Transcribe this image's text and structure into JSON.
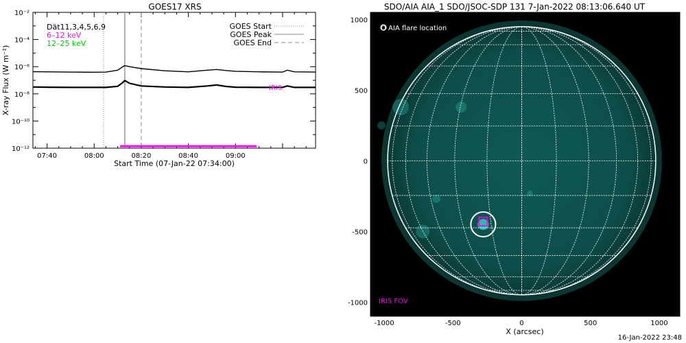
{
  "chart_data": [
    {
      "type": "line",
      "title": "GOES17 XRS",
      "xlabel": "Start Time (07-Jan-22 07:34:00)",
      "ylabel": "X-ray Flux (W m⁻²)",
      "y_scale": "log",
      "ylim": [
        1e-12,
        0.01
      ],
      "xlim": [
        "07:34",
        "09:34"
      ],
      "x_ticks": [
        "07:40",
        "08:00",
        "08:20",
        "08:40",
        "09:00"
      ],
      "y_ticks": [
        "10⁻¹²",
        "10⁻¹⁰",
        "10⁻⁸",
        "10⁻⁶",
        "10⁻⁴",
        "10⁻²"
      ],
      "annotation": "Dät11,3,4,5,6,9",
      "legend_position": "top-right",
      "legend": [
        {
          "label": "GOES Start",
          "style": "dotted"
        },
        {
          "label": "GOES Peak",
          "style": "solid"
        },
        {
          "label": "GOES End",
          "style": "dashed"
        }
      ],
      "channel_labels": [
        {
          "label": "6–12 keV",
          "color": "#ff00ff"
        },
        {
          "label": "12–25 keV",
          "color": "#00cc00"
        }
      ],
      "series": [
        {
          "color": "#000000",
          "x": [
            "07:34",
            "07:40",
            "07:50",
            "08:00",
            "08:05",
            "08:10",
            "08:12",
            "08:13",
            "08:15",
            "08:20",
            "08:30",
            "08:40",
            "08:48",
            "08:52",
            "08:56",
            "09:00",
            "09:10",
            "09:20",
            "09:22",
            "09:25",
            "09:34"
          ],
          "y": [
            4.3e-07,
            4.2e-07,
            4e-07,
            3.9e-07,
            4e-07,
            5.5e-07,
            9.5e-07,
            1.2e-06,
            1e-06,
            7.2e-07,
            5e-07,
            4.2e-07,
            5.5e-07,
            6.2e-07,
            5.2e-07,
            4.6e-07,
            4.2e-07,
            4e-07,
            5.5e-07,
            4.2e-07,
            4e-07
          ]
        },
        {
          "color": "#000000",
          "x": [
            "07:34",
            "07:40",
            "07:50",
            "08:00",
            "08:05",
            "08:10",
            "08:12",
            "08:13",
            "08:15",
            "08:20",
            "08:30",
            "08:40",
            "08:48",
            "08:52",
            "08:56",
            "09:00",
            "09:10",
            "09:20",
            "09:22",
            "09:25",
            "09:34"
          ],
          "y": [
            3.2e-08,
            3.1e-08,
            3e-08,
            3e-08,
            3e-08,
            3.6e-08,
            6.5e-08,
            9.5e-08,
            6e-08,
            3.8e-08,
            3.2e-08,
            3e-08,
            3.8e-08,
            4.5e-08,
            3.5e-08,
            3.1e-08,
            3e-08,
            3e-08,
            3.8e-08,
            3e-08,
            3e-08
          ]
        }
      ],
      "event_lines": {
        "start": "08:04",
        "peak": "08:13",
        "end": "08:20"
      },
      "iris_label": "IRIS",
      "iris_window": {
        "start": "08:11",
        "end": "09:09",
        "y": 1.4e-12,
        "color": "#ff00ff"
      }
    },
    {
      "type": "image",
      "title": "SDO/AIA AIA_1 SDO/JSOC-SDP 131  7-Jan-2022 08:13:06.640 UT",
      "xlabel": "X (arcsec)",
      "xlim": [
        -1100,
        1150
      ],
      "ylim": [
        -1100,
        1050
      ],
      "x_ticks": [
        -1000,
        -500,
        0,
        500,
        1000
      ],
      "y_ticks": [
        -1000,
        -500,
        0,
        500,
        1000
      ],
      "legend_label": "O AIA flare location",
      "iris_fov_label": "IRIS FOV",
      "colors": {
        "disk": "#0f5a55",
        "disk_edge": "#0a3a36",
        "accent": "#2fd6c6",
        "grid": "#ffffff",
        "iris": "#ff00ff"
      },
      "solar_radius_arcsec": 975,
      "flare_location": {
        "x": -280,
        "y": -450
      },
      "flare_circle_radius_arcsec": 90,
      "iris_fov": {
        "x": -280,
        "y": -430,
        "width": 60,
        "height": 60
      }
    }
  ],
  "footer": {
    "date": "16-Jan-2022 23:48"
  }
}
